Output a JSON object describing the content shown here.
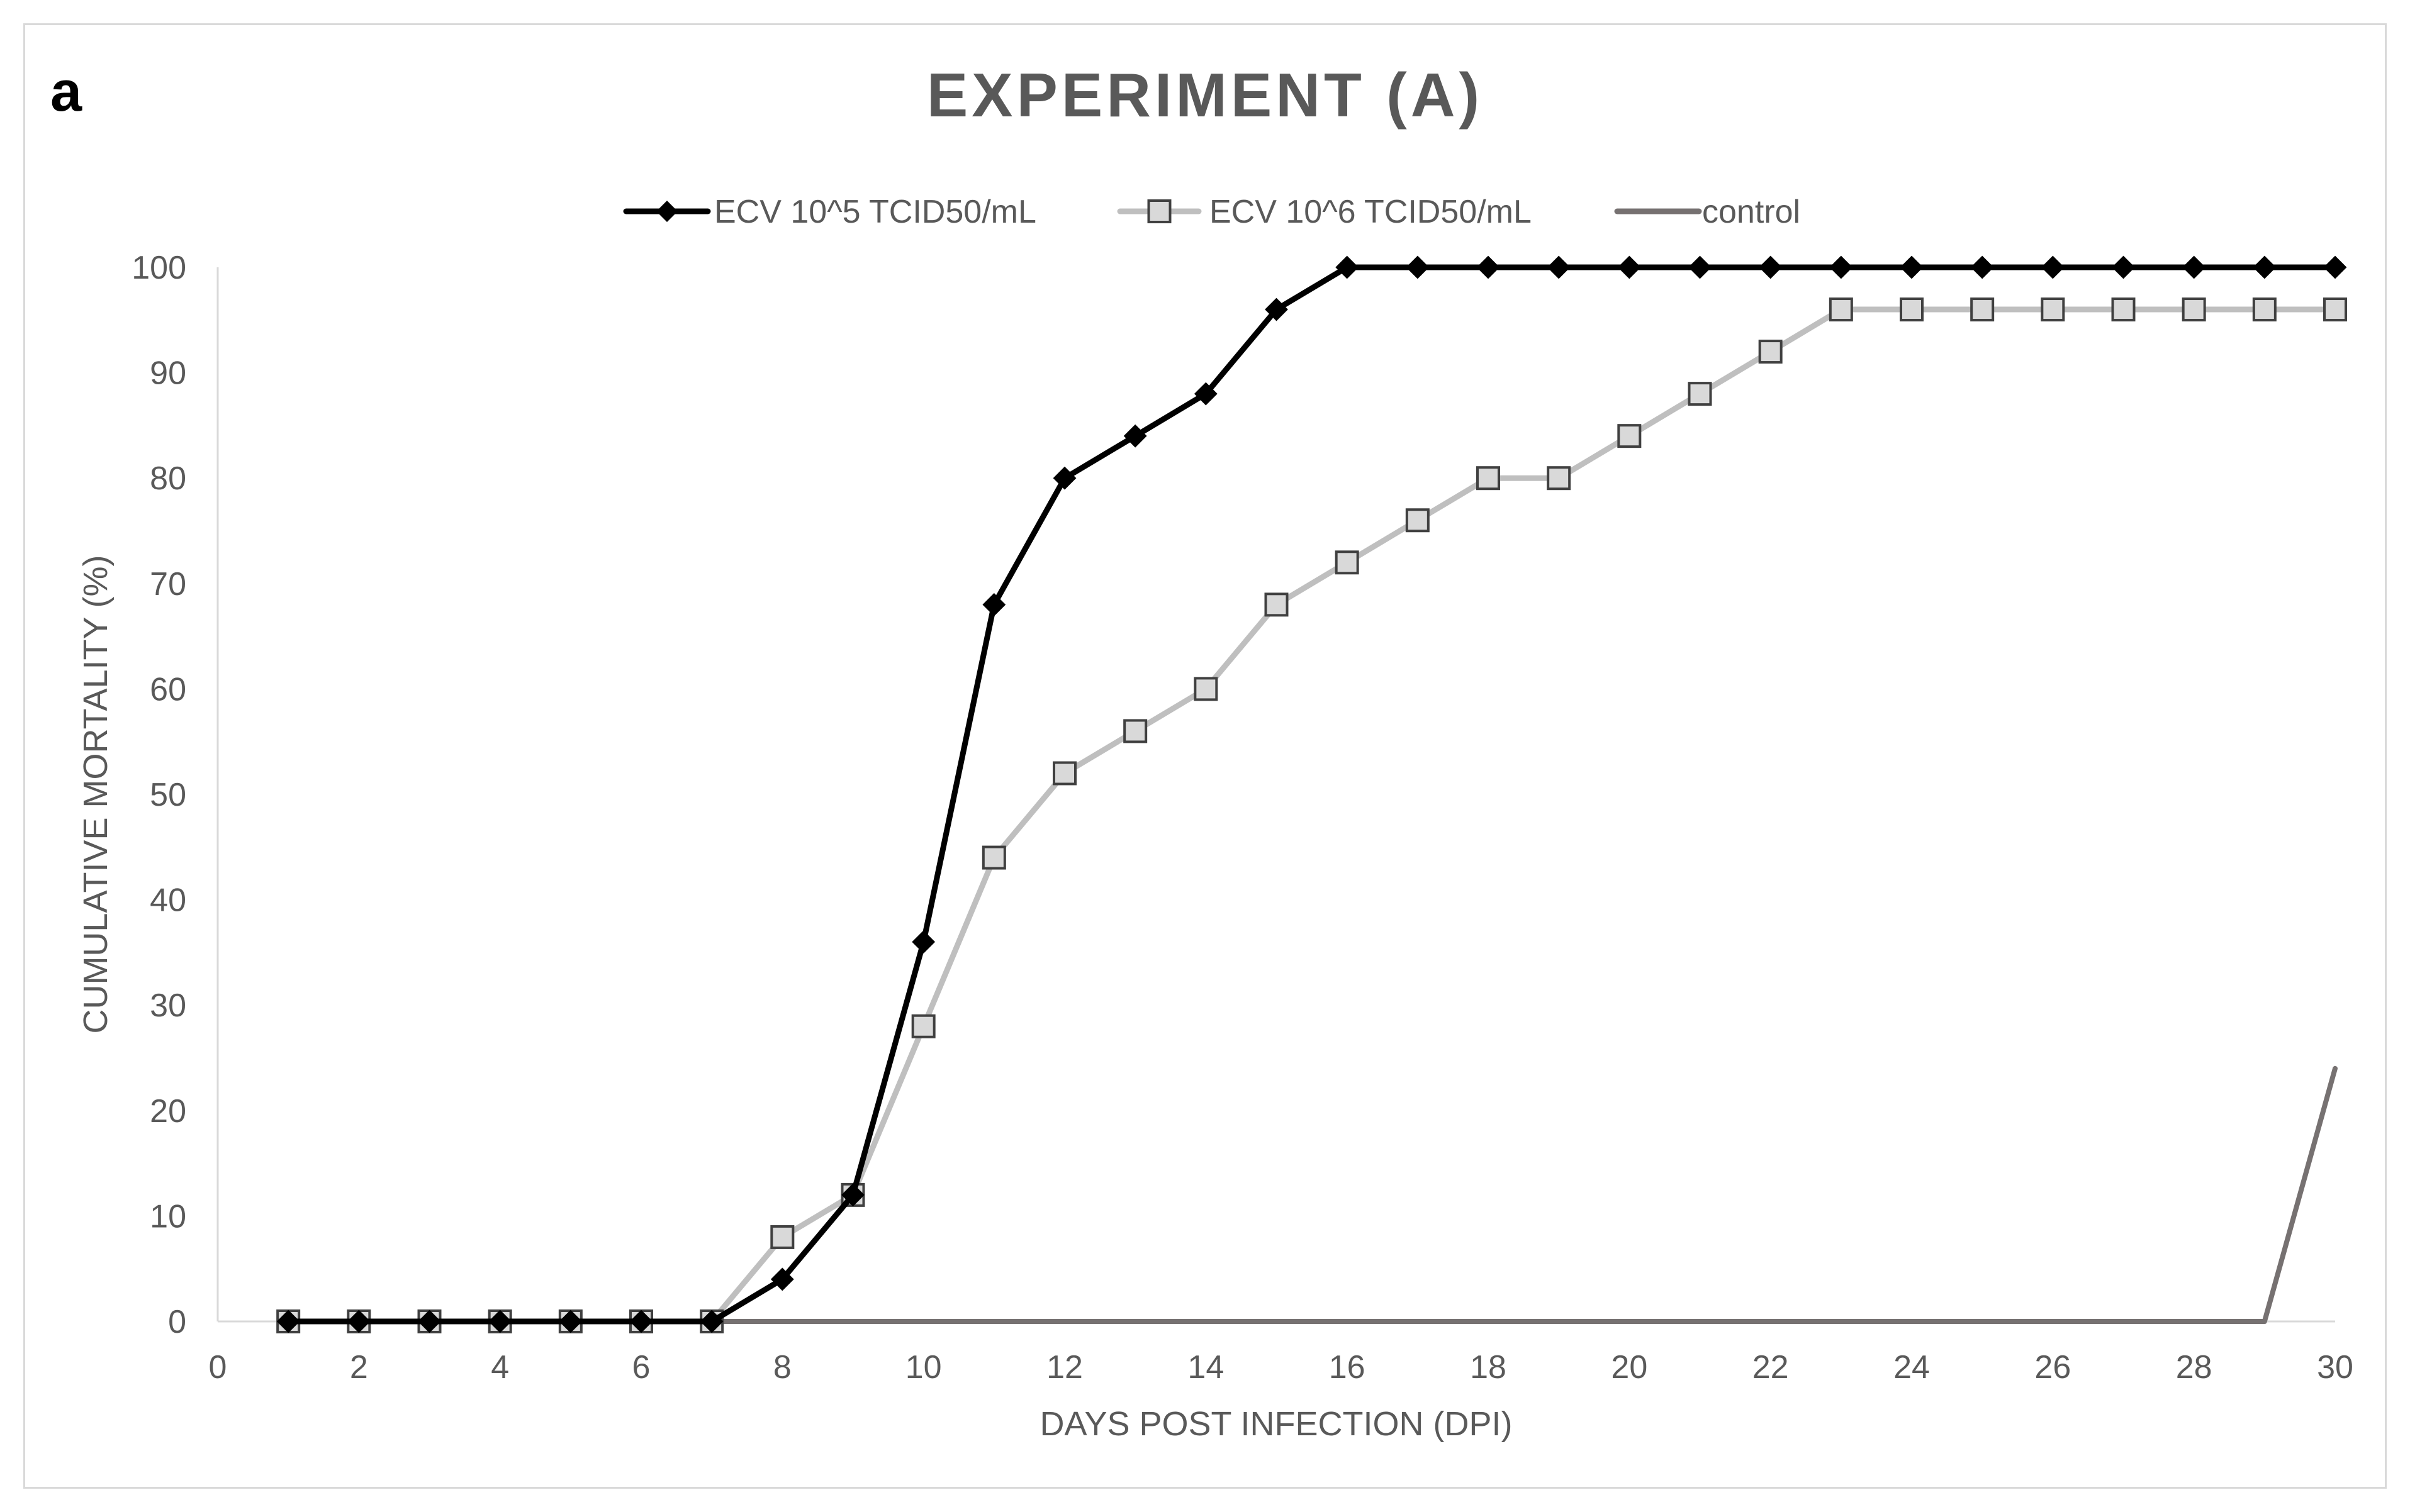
{
  "panel_label": "a",
  "chart_data": {
    "type": "line",
    "title": "EXPERIMENT (A)",
    "xlabel": "DAYS POST INFECTION (DPI)",
    "ylabel": "CUMULATIVE MORTALITY (%)",
    "xlim": [
      0,
      30
    ],
    "ylim": [
      0,
      100
    ],
    "x_ticks": [
      0,
      2,
      4,
      6,
      8,
      10,
      12,
      14,
      16,
      18,
      20,
      22,
      24,
      26,
      28,
      30
    ],
    "y_ticks": [
      0,
      10,
      20,
      30,
      40,
      50,
      60,
      70,
      80,
      90,
      100
    ],
    "grid": false,
    "legend_position": "top",
    "x": [
      1,
      2,
      3,
      4,
      5,
      6,
      7,
      8,
      9,
      10,
      11,
      12,
      13,
      14,
      15,
      16,
      17,
      18,
      19,
      20,
      21,
      22,
      23,
      24,
      25,
      26,
      27,
      28,
      29,
      30
    ],
    "series": [
      {
        "name": "ECV 10^5 TCID50/mL",
        "color": "#000000",
        "marker": "diamond",
        "values": [
          0,
          0,
          0,
          0,
          0,
          0,
          0,
          4,
          12,
          36,
          68,
          80,
          84,
          88,
          96,
          100,
          100,
          100,
          100,
          100,
          100,
          100,
          100,
          100,
          100,
          100,
          100,
          100,
          100,
          100
        ]
      },
      {
        "name": "ECV 10^6 TCID50/mL",
        "color": "#bfbfbf",
        "marker": "square",
        "values": [
          0,
          0,
          0,
          0,
          0,
          0,
          0,
          8,
          12,
          28,
          44,
          52,
          56,
          60,
          68,
          72,
          76,
          80,
          80,
          84,
          88,
          92,
          96,
          96,
          96,
          96,
          96,
          96,
          96,
          96
        ]
      },
      {
        "name": "control",
        "color": "#767171",
        "marker": "none",
        "values": [
          0,
          0,
          0,
          0,
          0,
          0,
          0,
          0,
          0,
          0,
          0,
          0,
          0,
          0,
          0,
          0,
          0,
          0,
          0,
          0,
          0,
          0,
          0,
          0,
          0,
          0,
          0,
          0,
          0,
          24
        ]
      }
    ]
  }
}
